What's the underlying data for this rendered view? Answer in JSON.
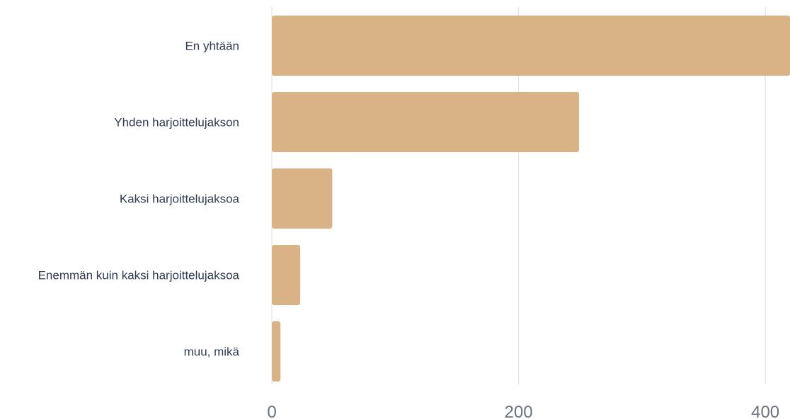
{
  "chart_data": {
    "type": "bar",
    "orientation": "horizontal",
    "categories": [
      "En yhtään",
      "Yhden harjoittelujakson",
      "Kaksi harjoittelujaksoa",
      "Enemmän kuin kaksi harjoittelujaksoa",
      "muu, mikä"
    ],
    "values": [
      420,
      249,
      49,
      23,
      7
    ],
    "xlim": [
      0,
      420
    ],
    "xticks": [
      0,
      200,
      400
    ],
    "xtick_labels": [
      "0",
      "200",
      "400"
    ],
    "grid": "vertical",
    "title": "",
    "xlabel": "",
    "ylabel": "",
    "colors": {
      "bar": "#d9b286",
      "grid": "#e3e3e3",
      "category_text": "#2f3a52",
      "tick_text": "#6b7280"
    }
  }
}
